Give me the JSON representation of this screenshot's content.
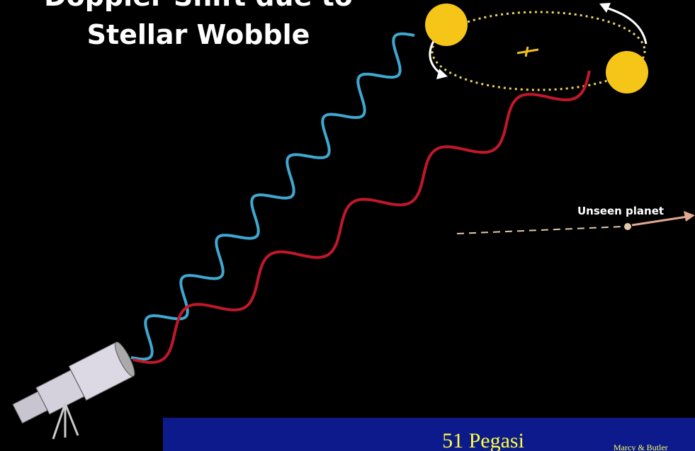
{
  "title": {
    "line1": "Doppler Shift due to",
    "line2": "Stellar Wobble"
  },
  "labels": {
    "planet": "Unseen planet"
  },
  "inset": {
    "title": "51 Pegasi",
    "credit": "Marcy & Butler"
  }
}
